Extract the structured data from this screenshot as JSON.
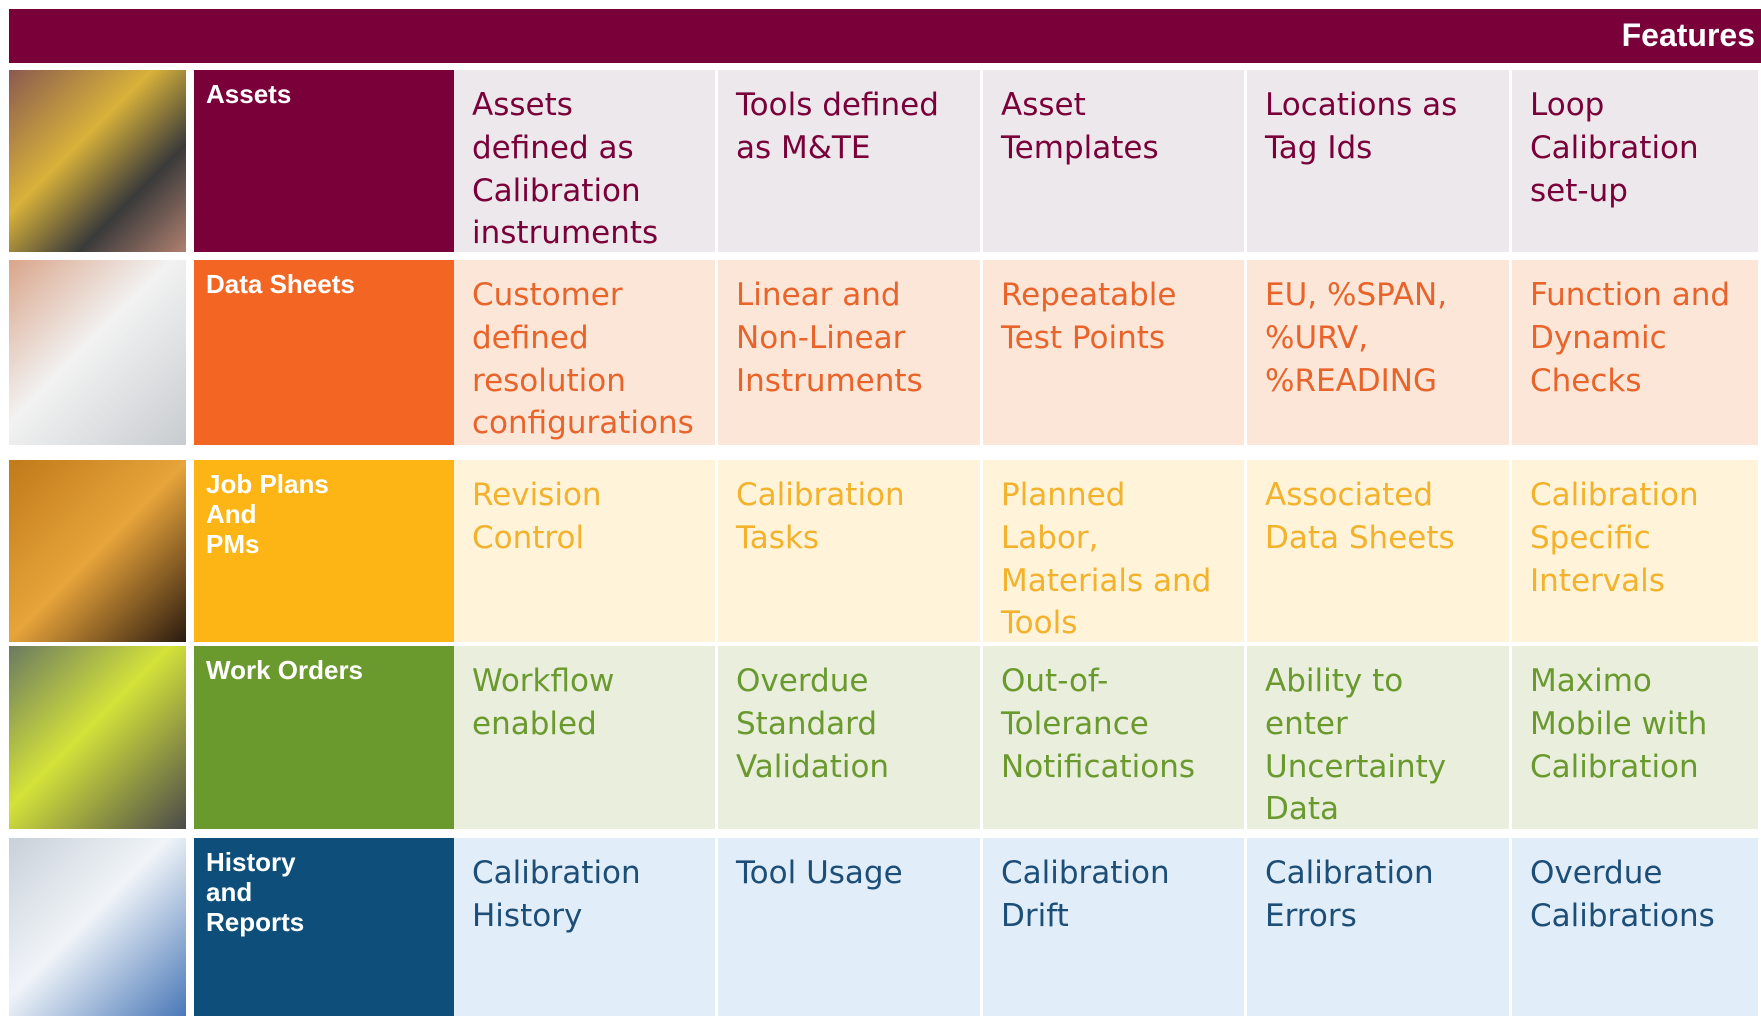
{
  "header": {
    "title": "Features"
  },
  "rows": [
    {
      "label": "Assets",
      "cells": [
        "Assets defined as Calibration instruments",
        "Tools defined as M&TE",
        "Asset Templates",
        "Locations as Tag Ids",
        "Loop Calibration set-up"
      ]
    },
    {
      "label": "Data Sheets",
      "cells": [
        "Customer defined resolution configurations",
        "Linear and Non-Linear Instruments",
        "Repeatable Test Points",
        "EU, %SPAN, %URV, %READING",
        "Function and Dynamic Checks"
      ]
    },
    {
      "label": "Job Plans\nAnd\nPMs",
      "cells": [
        "Revision Control",
        "Calibration Tasks",
        "Planned Labor, Materials and Tools",
        "Associated Data Sheets",
        "Calibration Specific Intervals"
      ]
    },
    {
      "label": "Work Orders",
      "cells": [
        "Workflow enabled",
        "Overdue Standard Validation",
        "Out-of-Tolerance Notifications",
        "Ability to enter Uncertainty Data",
        "Maximo Mobile with Calibration"
      ]
    },
    {
      "label": "History\nand\nReports",
      "cells": [
        "Calibration History",
        "Tool Usage",
        "Calibration Drift",
        "Calibration Errors",
        "Overdue Calibrations"
      ]
    }
  ]
}
